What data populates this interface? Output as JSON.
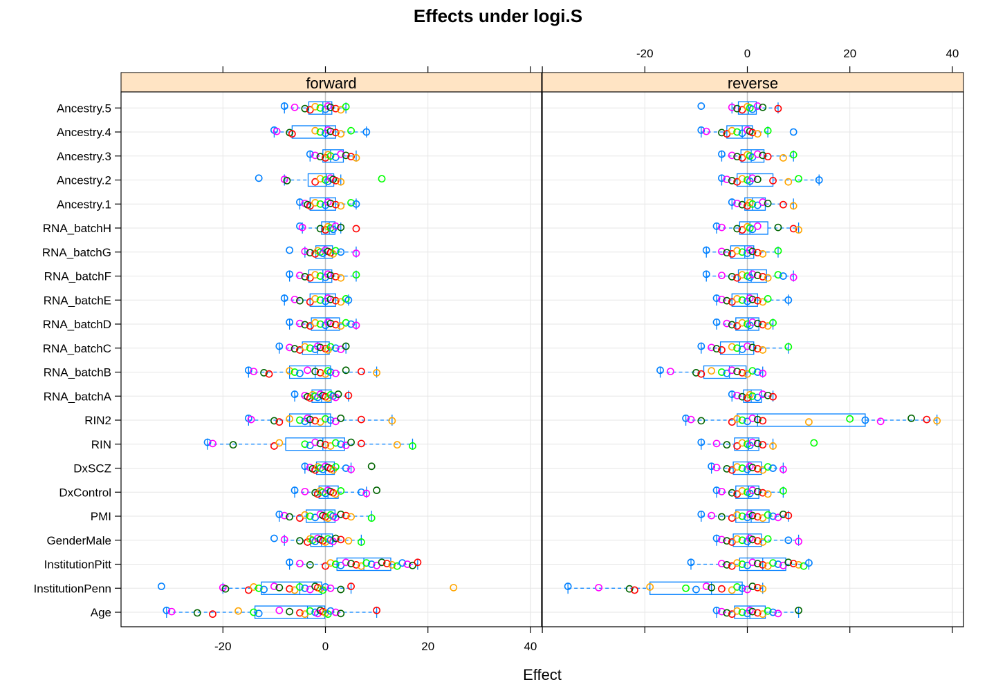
{
  "chart_data": {
    "type": "scatter",
    "subtype": "box-and-strip (horizontal) trellis panels",
    "title": "Effects under logi.S",
    "xlabel": "Effect",
    "ylabel": "",
    "xlim": [
      -40,
      40
    ],
    "xticks": [
      -20,
      0,
      20,
      40
    ],
    "grid": true,
    "colors": {
      "series": [
        "#0080ff",
        "#ff00ff",
        "#006400",
        "#ff0000",
        "#ffa500",
        "#00ff00"
      ],
      "box": "#0080ff",
      "strip": "#ffe4c4",
      "grid": "#e6e6e6",
      "zero_line": "#c0c0c0"
    },
    "categories": [
      "Age",
      "InstitutionPenn",
      "InstitutionPitt",
      "GenderMale",
      "PMI",
      "DxControl",
      "DxSCZ",
      "RIN",
      "RIN2",
      "RNA_batchA",
      "RNA_batchB",
      "RNA_batchC",
      "RNA_batchD",
      "RNA_batchE",
      "RNA_batchF",
      "RNA_batchG",
      "RNA_batchH",
      "Ancestry.1",
      "Ancestry.2",
      "Ancestry.3",
      "Ancestry.4",
      "Ancestry.5"
    ],
    "panels": [
      {
        "name": "forward",
        "axis_side": "bottom",
        "rows": {
          "Age": [
            -31,
            -30,
            -25,
            -22,
            -17,
            -14,
            -13,
            -9,
            -7,
            -5,
            -4,
            -3,
            -2,
            -1.5,
            -1,
            -0.5,
            0,
            0.5,
            1,
            2,
            3,
            10
          ],
          "InstitutionPenn": [
            -32,
            -20,
            -19.5,
            -15,
            -14,
            -13,
            -12,
            -10,
            -9,
            -7,
            -6,
            -5,
            -4,
            -3,
            -2,
            -1.5,
            -1,
            -0.5,
            0,
            1,
            3,
            5,
            25
          ],
          "InstitutionPitt": [
            -7,
            -5,
            -3,
            0,
            1,
            2,
            3,
            4,
            5,
            6,
            7,
            8,
            9,
            10,
            11,
            12,
            13,
            14,
            15,
            16,
            17,
            18
          ],
          "GenderMale": [
            -10,
            -8,
            -5,
            -3.5,
            -3,
            -2.5,
            -2,
            -1.5,
            -1,
            -0.5,
            0,
            0.5,
            1,
            1.5,
            2,
            3,
            4.5,
            7
          ],
          "PMI": [
            -9,
            -8,
            -7,
            -5,
            -4,
            -3,
            -2,
            -1,
            -0.5,
            0,
            0.5,
            1,
            1.5,
            2,
            3,
            4,
            5,
            9
          ],
          "DxControl": [
            -6,
            -4,
            -2,
            -1.5,
            -1,
            -0.5,
            0,
            0.5,
            1,
            1.5,
            2,
            3,
            7,
            8,
            10
          ],
          "DxSCZ": [
            -4,
            -3,
            -2.5,
            -2,
            -1.5,
            -1,
            -0.5,
            0,
            0.5,
            1,
            1.5,
            2,
            4,
            5,
            9
          ],
          "RIN": [
            -23,
            -22,
            -18,
            -10,
            -9,
            -4,
            -3,
            -2,
            -1,
            0,
            1,
            2,
            3,
            4,
            5,
            7,
            14,
            17
          ],
          "RIN2": [
            -15,
            -14.5,
            -10,
            -9,
            -7,
            -5,
            -4,
            -3.5,
            -3,
            -2,
            -1,
            0,
            1,
            2,
            3,
            7,
            13
          ],
          "RNA_batchA": [
            -6,
            -4,
            -3.5,
            -3,
            -2.5,
            -2,
            -1.5,
            -1,
            -0.5,
            0,
            0.5,
            1,
            1.5,
            2,
            2.5,
            4.5
          ],
          "RNA_batchB": [
            -15,
            -14,
            -12,
            -11,
            -7,
            -6,
            -5,
            -3.5,
            -2,
            -1,
            0,
            0.5,
            1,
            2,
            4,
            7,
            10
          ],
          "RNA_batchC": [
            -9,
            -7,
            -6,
            -5,
            -4,
            -3,
            -2,
            -1.5,
            -1,
            0,
            0.5,
            1,
            2,
            3,
            4
          ],
          "RNA_batchD": [
            -7,
            -5,
            -4,
            -3,
            -2,
            -1,
            0,
            0.5,
            1,
            2,
            3,
            4,
            5,
            6
          ],
          "RNA_batchE": [
            -8,
            -6,
            -5,
            -3,
            -2,
            -1,
            0,
            0.5,
            1,
            2,
            3,
            4,
            4.5
          ],
          "RNA_batchF": [
            -7,
            -5,
            -4,
            -3,
            -2,
            -1,
            0,
            0.5,
            1,
            2,
            3,
            6
          ],
          "RNA_batchG": [
            -7,
            -4,
            -3,
            -2,
            -1.5,
            -1,
            -0.5,
            0,
            0.5,
            1,
            1.5,
            2,
            3,
            6
          ],
          "RNA_batchH": [
            -5,
            -4.5,
            -1,
            0,
            0.5,
            1,
            1.5,
            2,
            3,
            6
          ],
          "Ancestry.1": [
            -5,
            -4,
            -3.5,
            -3,
            -2,
            -1,
            0,
            0.5,
            1,
            2,
            3,
            5,
            6
          ],
          "Ancestry.2": [
            -13,
            -8,
            -7.5,
            -2,
            -1,
            0,
            0.5,
            1,
            1.5,
            2,
            3,
            11
          ],
          "Ancestry.3": [
            -3,
            -2,
            -1,
            0,
            0.5,
            1,
            2,
            3,
            4,
            5,
            6
          ],
          "Ancestry.4": [
            -10,
            -9.5,
            -7,
            -6.5,
            -2,
            -1,
            0,
            0.5,
            1,
            2,
            3,
            5,
            8
          ],
          "Ancestry.5": [
            -8,
            -6,
            -4,
            -3,
            -2,
            -1,
            0,
            0.5,
            1,
            2,
            3,
            4
          ]
        }
      },
      {
        "name": "reverse",
        "axis_side": "top",
        "rows": {
          "Age": [
            -6,
            -5,
            -4,
            -3,
            -2,
            -1,
            0,
            0.5,
            1,
            2,
            3,
            4,
            5,
            6,
            10
          ],
          "InstitutionPenn": [
            -35,
            -29,
            -23,
            -22,
            -19,
            -12,
            -10,
            -8,
            -7,
            -5,
            -3,
            -2,
            -1,
            0,
            1,
            2,
            3
          ],
          "InstitutionPitt": [
            -11,
            -5,
            -4,
            -3,
            -2,
            -1,
            0,
            1,
            2,
            3,
            4,
            5,
            6,
            7,
            8,
            9,
            10,
            11,
            12
          ],
          "GenderMale": [
            -6,
            -5,
            -4,
            -3,
            -2,
            -1,
            0,
            0.5,
            1,
            2,
            3,
            4,
            8,
            10
          ],
          "PMI": [
            -9,
            -7,
            -5,
            -3,
            -2,
            -1,
            0,
            0.5,
            1,
            2,
            3,
            4,
            5,
            6,
            7,
            8
          ],
          "DxControl": [
            -6,
            -5,
            -3,
            -2,
            -1,
            0,
            0.5,
            1,
            2,
            3,
            4,
            7
          ],
          "DxSCZ": [
            -7,
            -6,
            -4,
            -3,
            -2,
            -1,
            0,
            0.5,
            1,
            2,
            3,
            4,
            5,
            7
          ],
          "RIN": [
            -9,
            -6,
            -4,
            -2,
            -1,
            0,
            0.5,
            1,
            2,
            3,
            5,
            13
          ],
          "RIN2": [
            -12,
            -11,
            -9,
            -3,
            -2,
            -1,
            0,
            1,
            2,
            3,
            12,
            20,
            23,
            26,
            32,
            35,
            37
          ],
          "RNA_batchA": [
            -3,
            -2,
            -1,
            0,
            0.5,
            1,
            2,
            3,
            4,
            5
          ],
          "RNA_batchB": [
            -17,
            -15,
            -10,
            -9,
            -7,
            -5,
            -4,
            -3,
            -2,
            -1,
            0,
            1,
            2,
            3
          ],
          "RNA_batchC": [
            -9,
            -7,
            -6,
            -5,
            -3,
            -2,
            -1,
            0,
            1,
            2,
            3,
            8
          ],
          "RNA_batchD": [
            -6,
            -4,
            -3,
            -2,
            -1,
            0,
            0.5,
            1,
            2,
            3,
            4,
            5
          ],
          "RNA_batchE": [
            -6,
            -5,
            -4,
            -3,
            -2,
            -1,
            0,
            0.5,
            1,
            2,
            3,
            4,
            8
          ],
          "RNA_batchF": [
            -8,
            -5,
            -3,
            -2,
            -1,
            0,
            0.5,
            1,
            2,
            3,
            4,
            6,
            7,
            9
          ],
          "RNA_batchG": [
            -8,
            -5,
            -4,
            -3,
            -2,
            -1,
            0,
            0.5,
            1,
            2,
            3,
            6
          ],
          "RNA_batchH": [
            -6,
            -5,
            -2,
            -1,
            0,
            0.5,
            1,
            2,
            6,
            9,
            10
          ],
          "Ancestry.1": [
            -3,
            -2,
            -1,
            0,
            0.5,
            1,
            2,
            3,
            4,
            7,
            9
          ],
          "Ancestry.2": [
            -5,
            -4,
            -3,
            -2,
            -1,
            0,
            0.5,
            1,
            2,
            5,
            8,
            10,
            14
          ],
          "Ancestry.3": [
            -5,
            -3,
            -2,
            -1,
            0,
            0.5,
            1,
            2,
            3,
            4,
            7,
            9
          ],
          "Ancestry.4": [
            -9,
            -8,
            -5,
            -4,
            -3,
            -2,
            -1,
            0,
            0.5,
            1,
            2,
            4,
            9
          ],
          "Ancestry.5": [
            -9,
            -3,
            -2,
            -1,
            0,
            0.5,
            1,
            2,
            3,
            6
          ]
        }
      }
    ]
  }
}
